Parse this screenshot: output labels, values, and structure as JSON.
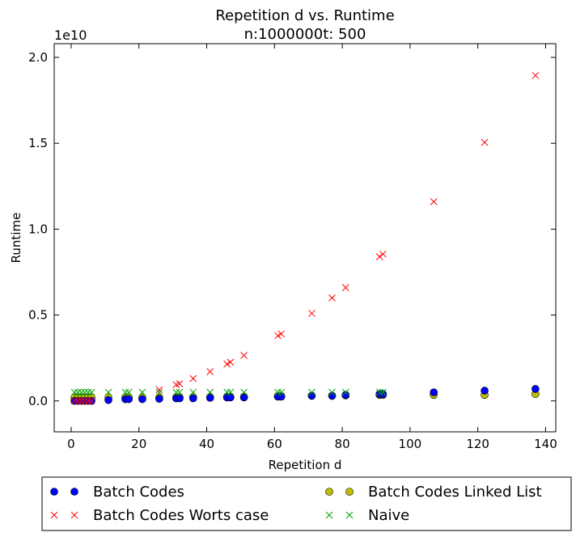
{
  "chart_data": {
    "type": "scatter",
    "title": "Repetition d vs. Runtime",
    "subtitle": "n:1000000t: 500",
    "xlabel": "Repetition d",
    "ylabel": "Runtime",
    "y_offset_label": "1e10",
    "xlim": [
      -5,
      143
    ],
    "ylim": [
      -0.18,
      2.08
    ],
    "x_ticks": [
      0,
      20,
      40,
      60,
      80,
      100,
      120,
      140
    ],
    "x_tick_labels": [
      "0",
      "20",
      "40",
      "60",
      "80",
      "100",
      "120",
      "140"
    ],
    "y_ticks": [
      0.0,
      0.5,
      1.0,
      1.5,
      2.0
    ],
    "y_tick_labels": [
      "0.0",
      "0.5",
      "1.0",
      "1.5",
      "2.0"
    ],
    "grid": false,
    "legend_placement": "below",
    "series": [
      {
        "name": "Batch Codes",
        "marker": "circle",
        "color": "#0000ff",
        "x": [
          1,
          2,
          3,
          4,
          5,
          6,
          11,
          16,
          17,
          21,
          26,
          31,
          32,
          36,
          41,
          46,
          47,
          51,
          61,
          62,
          71,
          77,
          81,
          91,
          92,
          107,
          122,
          137
        ],
        "y": [
          0.0,
          0.0,
          0.0,
          0.0,
          0.0,
          0.0,
          0.005,
          0.01,
          0.01,
          0.01,
          0.012,
          0.015,
          0.015,
          0.015,
          0.018,
          0.02,
          0.02,
          0.02,
          0.025,
          0.025,
          0.03,
          0.03,
          0.035,
          0.04,
          0.04,
          0.05,
          0.06,
          0.07
        ]
      },
      {
        "name": "Batch Codes Worts case",
        "marker": "x",
        "color": "#ff0000",
        "x": [
          1,
          2,
          3,
          4,
          5,
          6,
          26,
          31,
          32,
          36,
          41,
          46,
          47,
          51,
          61,
          62,
          71,
          77,
          81,
          91,
          92,
          107,
          122,
          137
        ],
        "y": [
          0.0,
          0.0,
          0.0,
          0.0,
          0.0,
          0.0,
          0.065,
          0.095,
          0.1,
          0.13,
          0.17,
          0.215,
          0.225,
          0.265,
          0.38,
          0.39,
          0.51,
          0.6,
          0.66,
          0.84,
          0.855,
          1.16,
          1.505,
          1.895
        ]
      },
      {
        "name": "Batch Codes Linked List",
        "marker": "circle",
        "color": "#bfbf00",
        "x": [
          1,
          2,
          3,
          4,
          5,
          6,
          11,
          16,
          17,
          21,
          26,
          31,
          32,
          36,
          41,
          46,
          47,
          51,
          61,
          62,
          71,
          77,
          81,
          91,
          92,
          107,
          122,
          137
        ],
        "y": [
          0.02,
          0.02,
          0.02,
          0.02,
          0.02,
          0.02,
          0.02,
          0.02,
          0.02,
          0.02,
          0.02,
          0.02,
          0.02,
          0.022,
          0.022,
          0.025,
          0.025,
          0.025,
          0.028,
          0.028,
          0.03,
          0.03,
          0.032,
          0.035,
          0.035,
          0.035,
          0.035,
          0.04
        ]
      },
      {
        "name": "Naive",
        "marker": "x",
        "color": "#00a000",
        "x": [
          1,
          2,
          3,
          4,
          5,
          6,
          11,
          16,
          17,
          21,
          26,
          31,
          32,
          36,
          41,
          46,
          47,
          51,
          61,
          62,
          71,
          77,
          81,
          91,
          92
        ],
        "y": [
          0.05,
          0.05,
          0.05,
          0.05,
          0.05,
          0.05,
          0.05,
          0.05,
          0.05,
          0.05,
          0.05,
          0.05,
          0.05,
          0.05,
          0.05,
          0.05,
          0.05,
          0.05,
          0.05,
          0.05,
          0.05,
          0.05,
          0.05,
          0.05,
          0.05
        ]
      }
    ]
  }
}
